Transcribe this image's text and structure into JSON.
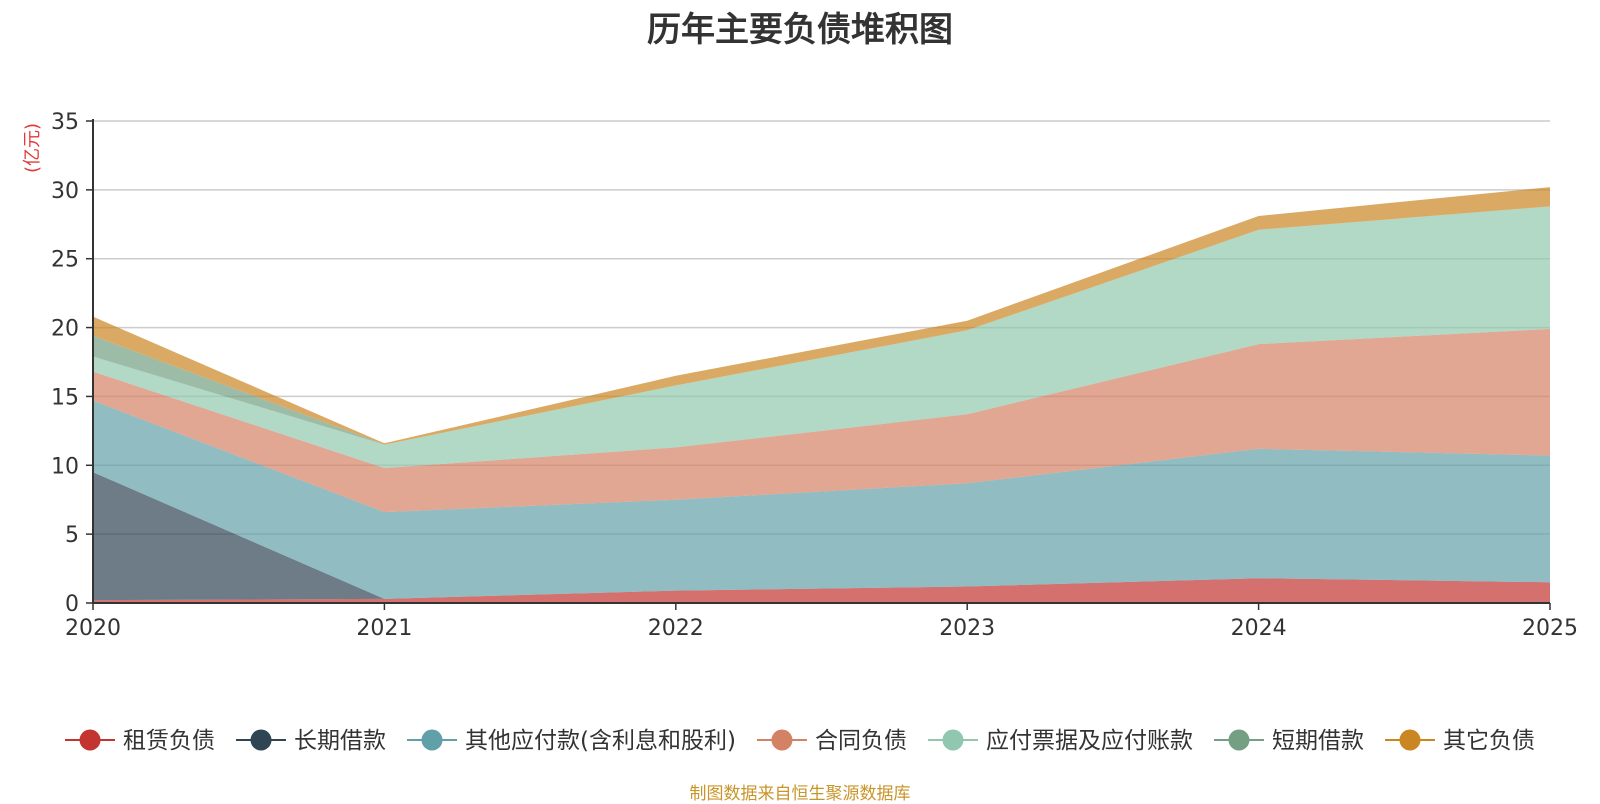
{
  "chart_data": {
    "type": "area",
    "stacked": true,
    "title": "历年主要负债堆积图",
    "unit_label": "(亿元)",
    "xlabel": "",
    "ylabel": "(亿元)",
    "x": [
      "2020",
      "2021",
      "2022",
      "2023",
      "2024",
      "2025"
    ],
    "ylim": [
      0,
      35
    ],
    "yticks": [
      0,
      5,
      10,
      15,
      20,
      25,
      30,
      35
    ],
    "grid": true,
    "legend_position": "bottom",
    "series": [
      {
        "name": "租赁负债",
        "color": "#c23531",
        "values": [
          0.2,
          0.3,
          0.9,
          1.2,
          1.8,
          1.5
        ]
      },
      {
        "name": "长期借款",
        "color": "#2f4554",
        "values": [
          9.3,
          0.0,
          0.0,
          0.0,
          0.0,
          0.0
        ]
      },
      {
        "name": "其他应付款(含利息和股利)",
        "color": "#61a0a8",
        "values": [
          5.2,
          6.3,
          6.6,
          7.5,
          9.4,
          9.2
        ]
      },
      {
        "name": "合同负债",
        "color": "#d48265",
        "values": [
          2.1,
          3.2,
          3.8,
          5.0,
          7.6,
          9.2
        ]
      },
      {
        "name": "应付票据及应付账款",
        "color": "#91c7ae",
        "values": [
          1.1,
          1.7,
          4.5,
          6.1,
          8.3,
          8.9
        ]
      },
      {
        "name": "短期借款",
        "color": "#749f83",
        "values": [
          1.5,
          0.0,
          0.0,
          0.0,
          0.0,
          0.0
        ]
      },
      {
        "name": "其它负债",
        "color": "#ca8622",
        "values": [
          1.4,
          0.1,
          0.7,
          0.7,
          1.0,
          1.4
        ]
      }
    ]
  },
  "source_note": "制图数据来自恒生聚源数据库"
}
